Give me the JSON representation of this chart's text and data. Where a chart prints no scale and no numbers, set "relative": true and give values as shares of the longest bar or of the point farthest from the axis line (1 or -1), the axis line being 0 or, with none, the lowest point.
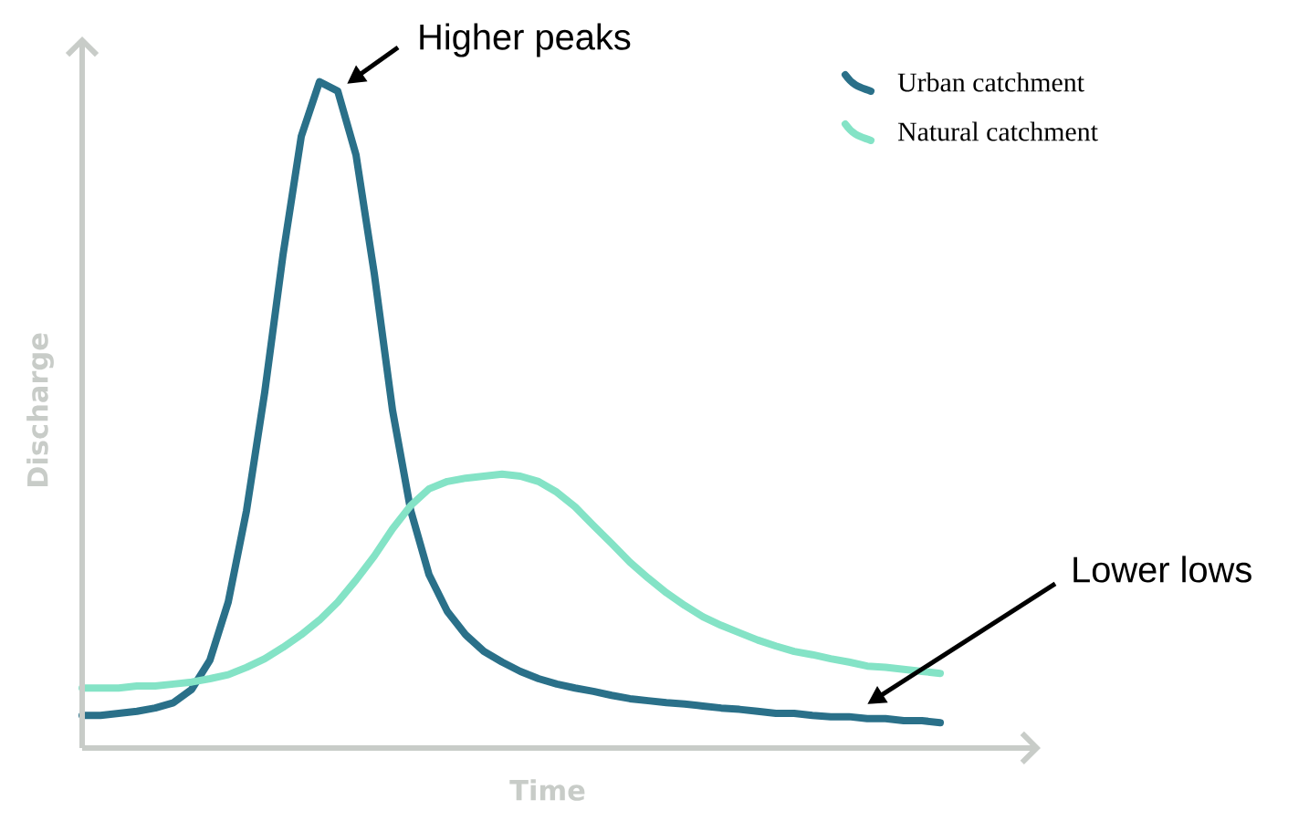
{
  "chart_data": {
    "type": "line",
    "relative": true,
    "xlabel": "Time",
    "ylabel": "Discharge",
    "legend": "top right",
    "marker": "none",
    "line_style": "solid",
    "categories": [
      null,
      null,
      null,
      null,
      null,
      null,
      null,
      null,
      null,
      null,
      null,
      null,
      null,
      null,
      null,
      null,
      null,
      null,
      null,
      null,
      null,
      null,
      null,
      null,
      null,
      null,
      null,
      null,
      null,
      null,
      null,
      null,
      null,
      null,
      null,
      null,
      null,
      null,
      null,
      null,
      null,
      null,
      null,
      null,
      null,
      null,
      null,
      null
    ],
    "series": [
      {
        "name": "Urban catchment",
        "color": "#2a7089",
        "values": [
          0.049,
          0.049,
          0.052,
          0.055,
          0.06,
          0.068,
          0.088,
          0.132,
          0.219,
          0.356,
          0.534,
          0.74,
          0.918,
          1,
          0.986,
          0.89,
          0.712,
          0.507,
          0.356,
          0.26,
          0.205,
          0.17,
          0.145,
          0.129,
          0.115,
          0.104,
          0.096,
          0.09,
          0.085,
          0.079,
          0.074,
          0.071,
          0.068,
          0.066,
          0.063,
          0.06,
          0.058,
          0.055,
          0.052,
          0.052,
          0.049,
          0.047,
          0.047,
          0.044,
          0.044,
          0.041,
          0.041,
          0.038
        ]
      },
      {
        "name": "Natural catchment",
        "color": "#84e3c6",
        "values": [
          0.09,
          0.09,
          0.09,
          0.093,
          0.093,
          0.096,
          0.099,
          0.104,
          0.11,
          0.121,
          0.134,
          0.151,
          0.17,
          0.192,
          0.219,
          0.252,
          0.288,
          0.329,
          0.364,
          0.389,
          0.4,
          0.405,
          0.408,
          0.411,
          0.408,
          0.4,
          0.384,
          0.362,
          0.334,
          0.307,
          0.279,
          0.255,
          0.233,
          0.214,
          0.197,
          0.184,
          0.173,
          0.162,
          0.153,
          0.145,
          0.14,
          0.134,
          0.129,
          0.123,
          0.121,
          0.118,
          0.115,
          0.112
        ]
      }
    ],
    "annotations": [
      "Higher peaks",
      "Lower lows"
    ]
  }
}
